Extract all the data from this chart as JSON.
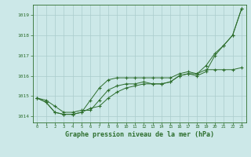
{
  "title": "Graphe pression niveau de la mer (hPa)",
  "bg_color": "#cce8e8",
  "grid_color": "#aacccc",
  "line_color": "#2d6e2d",
  "marker_color": "#2d6e2d",
  "xlim": [
    -0.5,
    23.5
  ],
  "ylim": [
    1013.7,
    1019.5
  ],
  "xticks": [
    0,
    1,
    2,
    3,
    4,
    5,
    6,
    7,
    8,
    9,
    10,
    11,
    12,
    13,
    14,
    15,
    16,
    17,
    18,
    19,
    20,
    21,
    22,
    23
  ],
  "yticks": [
    1014,
    1015,
    1016,
    1017,
    1018,
    1019
  ],
  "series": [
    [
      1014.9,
      1014.8,
      1014.5,
      1014.2,
      1014.2,
      1014.3,
      1014.3,
      1014.8,
      1015.3,
      1015.5,
      1015.6,
      1015.6,
      1015.7,
      1015.6,
      1015.6,
      1015.7,
      1016.0,
      1016.1,
      1016.0,
      1016.2,
      1017.0,
      1017.5,
      1018.0,
      1019.3
    ],
    [
      1014.9,
      1014.7,
      1014.2,
      1014.1,
      1014.1,
      1014.2,
      1014.4,
      1014.5,
      1014.9,
      1015.2,
      1015.4,
      1015.5,
      1015.6,
      1015.6,
      1015.6,
      1015.7,
      1016.0,
      1016.1,
      1016.1,
      1016.3,
      1016.3,
      1016.3,
      1016.3,
      1016.4
    ],
    [
      1014.9,
      1014.7,
      1014.2,
      1014.1,
      1014.1,
      1014.2,
      1014.8,
      1015.4,
      1015.8,
      1015.9,
      1015.9,
      1015.9,
      1015.9,
      1015.9,
      1015.9,
      1015.9,
      1016.1,
      1016.2,
      1016.1,
      1016.5,
      1017.1,
      1017.5,
      1018.0,
      1019.3
    ]
  ],
  "x": [
    0,
    1,
    2,
    3,
    4,
    5,
    6,
    7,
    8,
    9,
    10,
    11,
    12,
    13,
    14,
    15,
    16,
    17,
    18,
    19,
    20,
    21,
    22,
    23
  ]
}
